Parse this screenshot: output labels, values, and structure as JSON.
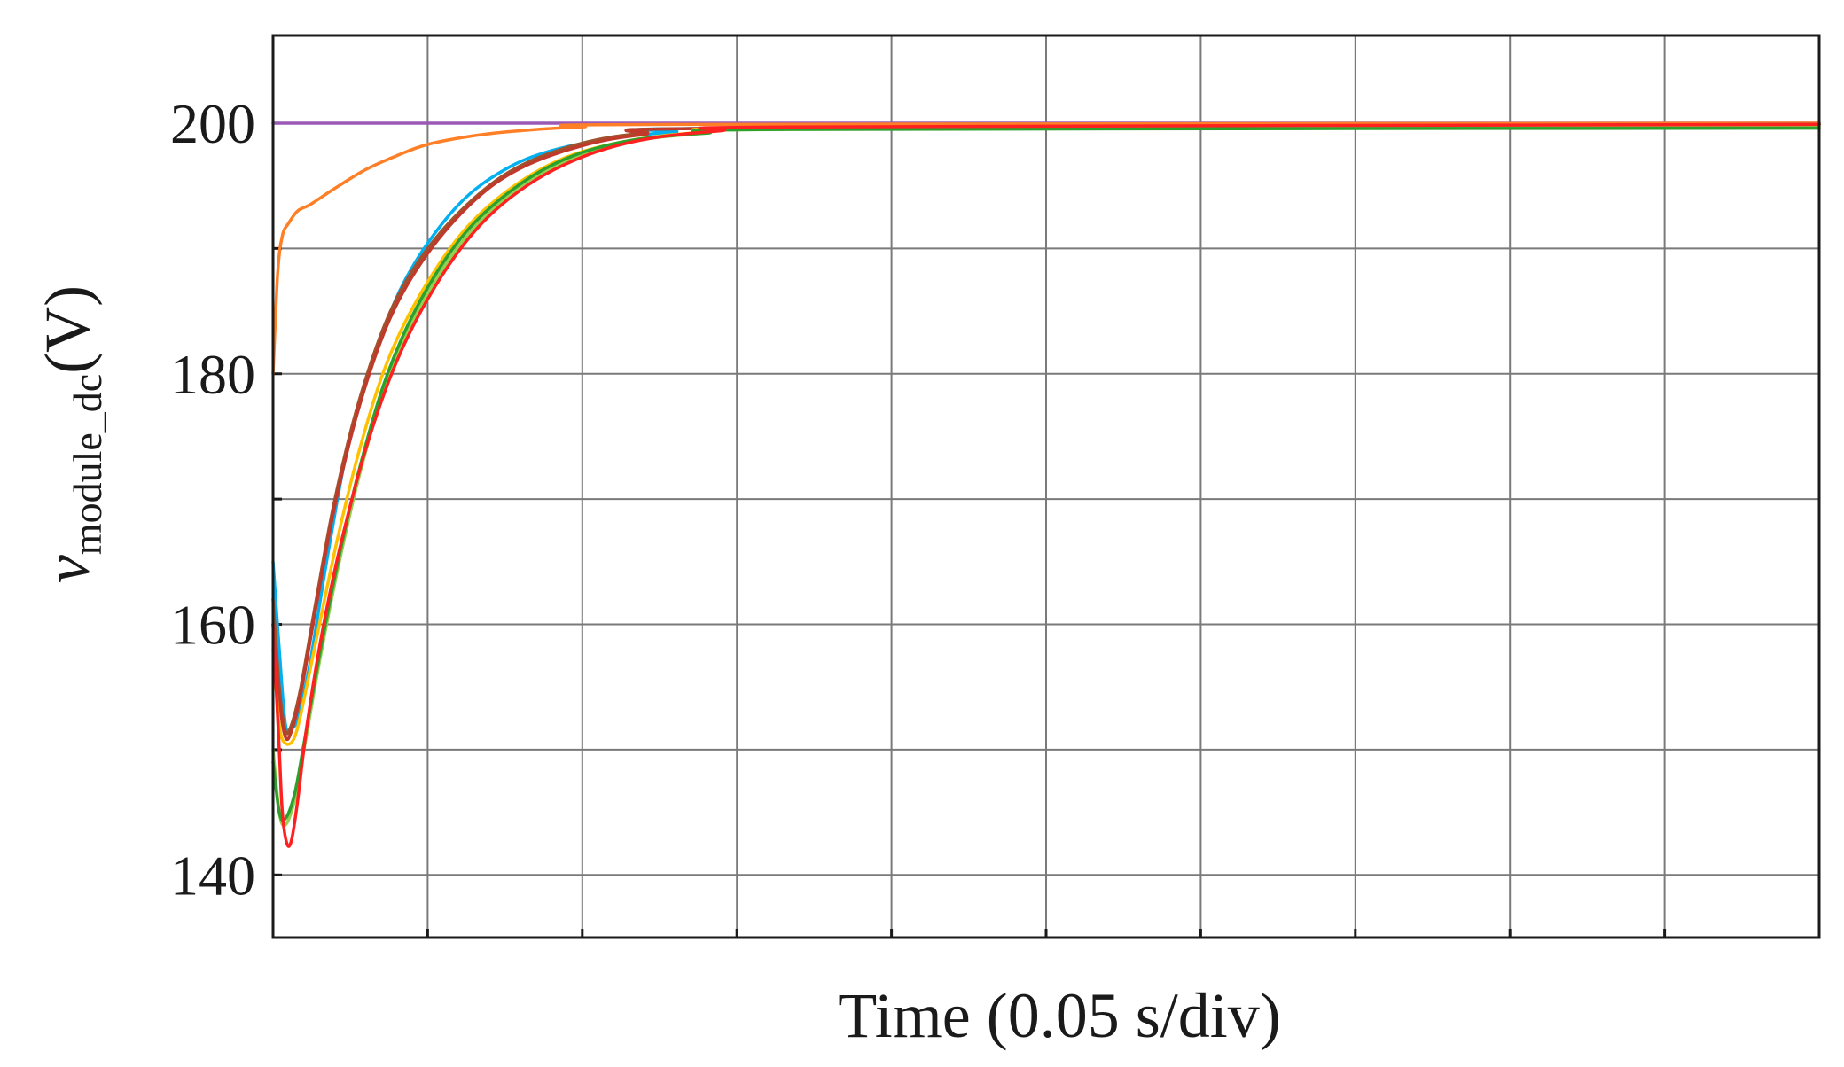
{
  "chart_data": {
    "type": "line",
    "title": "",
    "xlabel": "Time (0.05 s/div)",
    "ylabel": {
      "symbol": "v",
      "subscript": "module_dc",
      "unit": "(V)"
    },
    "x_unit": "s",
    "xlim": [
      0,
      0.5
    ],
    "ylim": [
      135,
      207
    ],
    "x_grid_step": 0.05,
    "y_gridlines": [
      140,
      150,
      160,
      170,
      180,
      190,
      200
    ],
    "yticks": [
      140,
      160,
      180,
      200
    ],
    "grid": true,
    "legend": "none",
    "series": [
      {
        "color": "#9b59b6",
        "x": [
          0,
          0.5
        ],
        "y": [
          200,
          200
        ]
      },
      {
        "color": "#ff7f27",
        "x": [
          0,
          0.0015,
          0.003,
          0.005,
          0.008,
          0.012,
          0.02,
          0.03,
          0.04,
          0.05,
          0.065,
          0.08,
          0.1,
          0.13,
          0.5
        ],
        "y": [
          180,
          188,
          191,
          192,
          193,
          193.5,
          194.8,
          196.3,
          197.4,
          198.3,
          199.0,
          199.4,
          199.7,
          199.9,
          200
        ]
      },
      {
        "color": "#00b0f0",
        "x": [
          0,
          0.002,
          0.004,
          0.006,
          0.008,
          0.012,
          0.018,
          0.025,
          0.035,
          0.045,
          0.06,
          0.075,
          0.09,
          0.11,
          0.13,
          0.15,
          0.5
        ],
        "y": [
          165,
          158,
          152,
          151.8,
          152.5,
          157,
          166,
          175,
          183,
          188.5,
          193.5,
          196.3,
          197.8,
          198.8,
          199.3,
          199.6,
          199.9
        ]
      },
      {
        "color": "#a0522d",
        "x": [
          0,
          0.002,
          0.004,
          0.006,
          0.009,
          0.014,
          0.02,
          0.028,
          0.038,
          0.05,
          0.065,
          0.08,
          0.1,
          0.12,
          0.15,
          0.5
        ],
        "y": [
          162,
          155,
          151.5,
          152,
          155,
          162,
          170,
          178,
          185,
          190,
          194,
          196.6,
          198.4,
          199.2,
          199.6,
          199.9
        ]
      },
      {
        "color": "#c0392b",
        "x": [
          0,
          0.002,
          0.004,
          0.006,
          0.009,
          0.014,
          0.02,
          0.028,
          0.038,
          0.05,
          0.065,
          0.08,
          0.1,
          0.12,
          0.15,
          0.5
        ],
        "y": [
          160,
          154,
          151,
          151.5,
          154.5,
          161.5,
          169.5,
          177.5,
          184.5,
          189.6,
          193.8,
          196.4,
          198.2,
          199.1,
          199.6,
          199.9
        ]
      },
      {
        "color": "#ffc000",
        "x": [
          0,
          0.002,
          0.004,
          0.007,
          0.01,
          0.015,
          0.021,
          0.028,
          0.037,
          0.048,
          0.062,
          0.078,
          0.095,
          0.115,
          0.14,
          0.17,
          0.5
        ],
        "y": [
          158,
          152,
          150.5,
          151,
          154,
          160,
          167,
          174,
          181,
          186.5,
          191.5,
          195,
          197.3,
          198.6,
          199.3,
          199.6,
          199.8
        ]
      },
      {
        "color": "#92d050",
        "x": [
          0,
          0.002,
          0.004,
          0.007,
          0.01,
          0.015,
          0.021,
          0.028,
          0.037,
          0.048,
          0.062,
          0.078,
          0.095,
          0.115,
          0.14,
          0.17,
          0.5
        ],
        "y": [
          150,
          145,
          144,
          146,
          150,
          157,
          164.5,
          172,
          179.5,
          185.5,
          190.8,
          194.6,
          197,
          198.5,
          199.2,
          199.5,
          199.7
        ]
      },
      {
        "color": "#2ca02c",
        "x": [
          0,
          0.002,
          0.004,
          0.007,
          0.01,
          0.015,
          0.021,
          0.028,
          0.037,
          0.048,
          0.062,
          0.078,
          0.095,
          0.115,
          0.14,
          0.17,
          0.5
        ],
        "y": [
          149,
          145,
          144.5,
          146.5,
          150.5,
          157.5,
          165,
          172.5,
          180,
          186,
          191.2,
          194.8,
          197.2,
          198.6,
          199.2,
          199.5,
          199.6
        ]
      },
      {
        "color": "#ff2020",
        "x": [
          0,
          0.002,
          0.003,
          0.0045,
          0.006,
          0.008,
          0.011,
          0.016,
          0.022,
          0.03,
          0.04,
          0.052,
          0.066,
          0.082,
          0.1,
          0.12,
          0.145,
          0.17,
          0.5
        ],
        "y": [
          160,
          150,
          145,
          142.5,
          142.8,
          146,
          152,
          159.5,
          166.5,
          174,
          181,
          186.8,
          191.6,
          195,
          197.3,
          198.7,
          199.4,
          199.7,
          199.9
        ]
      }
    ]
  }
}
